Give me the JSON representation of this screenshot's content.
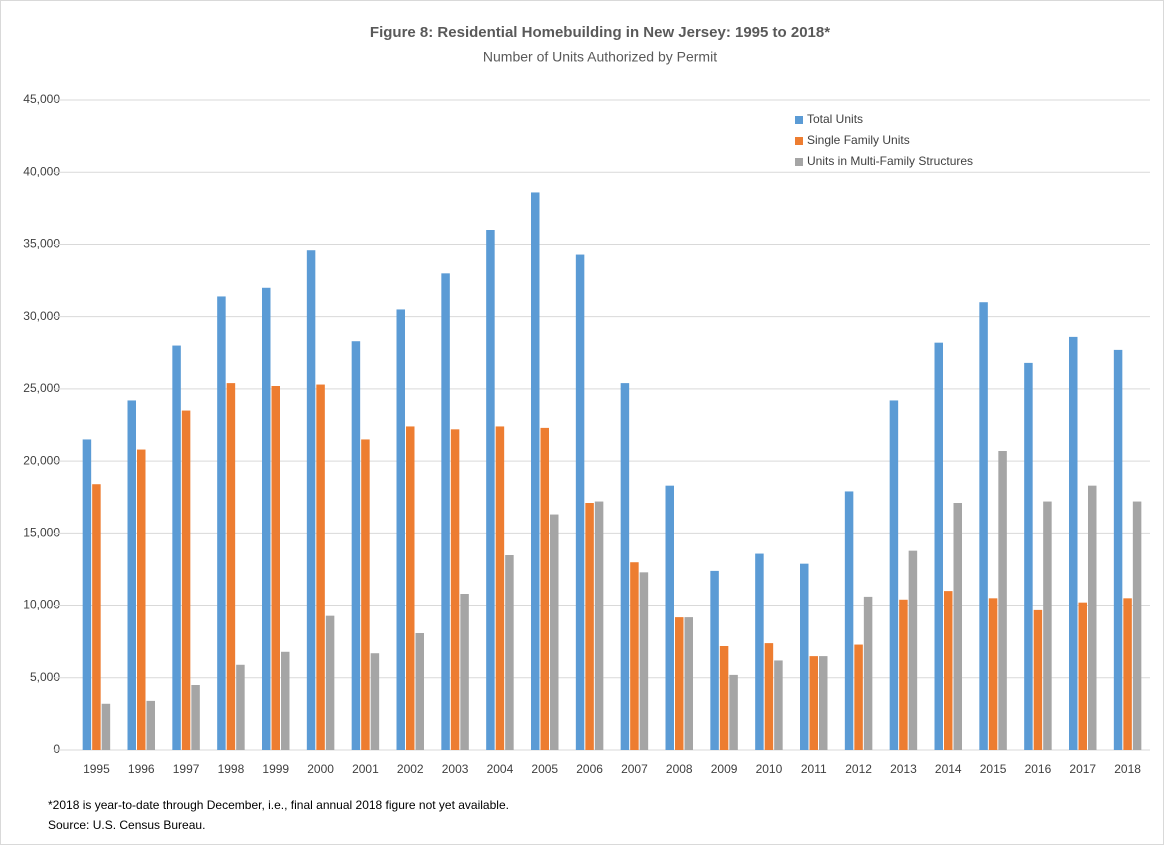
{
  "chart_data": {
    "type": "bar",
    "title": "Figure 8: Residential Homebuilding in New Jersey: 1995 to 2018*",
    "subtitle": "Number of Units Authorized by Permit",
    "categories": [
      "1995",
      "1996",
      "1997",
      "1998",
      "1999",
      "2000",
      "2001",
      "2002",
      "2003",
      "2004",
      "2005",
      "2006",
      "2007",
      "2008",
      "2009",
      "2010",
      "2011",
      "2012",
      "2013",
      "2014",
      "2015",
      "2016",
      "2017",
      "2018"
    ],
    "series": [
      {
        "name": "Total Units",
        "color": "#5b9bd5",
        "values": [
          21500,
          24200,
          28000,
          31400,
          32000,
          34600,
          28300,
          30500,
          33000,
          36000,
          38600,
          34300,
          25400,
          18300,
          12400,
          13600,
          12900,
          17900,
          24200,
          28200,
          31000,
          26800,
          28600,
          27700
        ]
      },
      {
        "name": "Single Family Units",
        "color": "#ed7d31",
        "values": [
          18400,
          20800,
          23500,
          25400,
          25200,
          25300,
          21500,
          22400,
          22200,
          22400,
          22300,
          17100,
          13000,
          9200,
          7200,
          7400,
          6500,
          7300,
          10400,
          11000,
          10500,
          9700,
          10200,
          10500
        ]
      },
      {
        "name": "Units in Multi-Family Structures",
        "color": "#a5a5a5",
        "values": [
          3200,
          3400,
          4500,
          5900,
          6800,
          9300,
          6700,
          8100,
          10800,
          13500,
          16300,
          17200,
          12300,
          9200,
          5200,
          6200,
          6500,
          10600,
          13800,
          17100,
          20700,
          17200,
          18300,
          17200
        ]
      }
    ],
    "ylim": [
      0,
      45000
    ],
    "yticks": [
      0,
      {
        "value": 5000,
        "label": "5,000"
      },
      {
        "value": 10000,
        "label": "10,000"
      },
      {
        "value": 15000,
        "label": "15,000"
      },
      {
        "value": 20000,
        "label": "20,000"
      },
      {
        "value": 25000,
        "label": "25,000"
      },
      {
        "value": 30000,
        "label": "30,000"
      },
      {
        "value": 35000,
        "label": "35,000"
      },
      {
        "value": 40000,
        "label": "40,000"
      },
      {
        "value": 45000,
        "label": "45,000"
      }
    ],
    "grid": true,
    "legend": "top-right",
    "notes": [
      "*2018 is year-to-date through December,  i.e., final annual 2018 figure not yet available.",
      "Source: U.S. Census Bureau."
    ]
  }
}
